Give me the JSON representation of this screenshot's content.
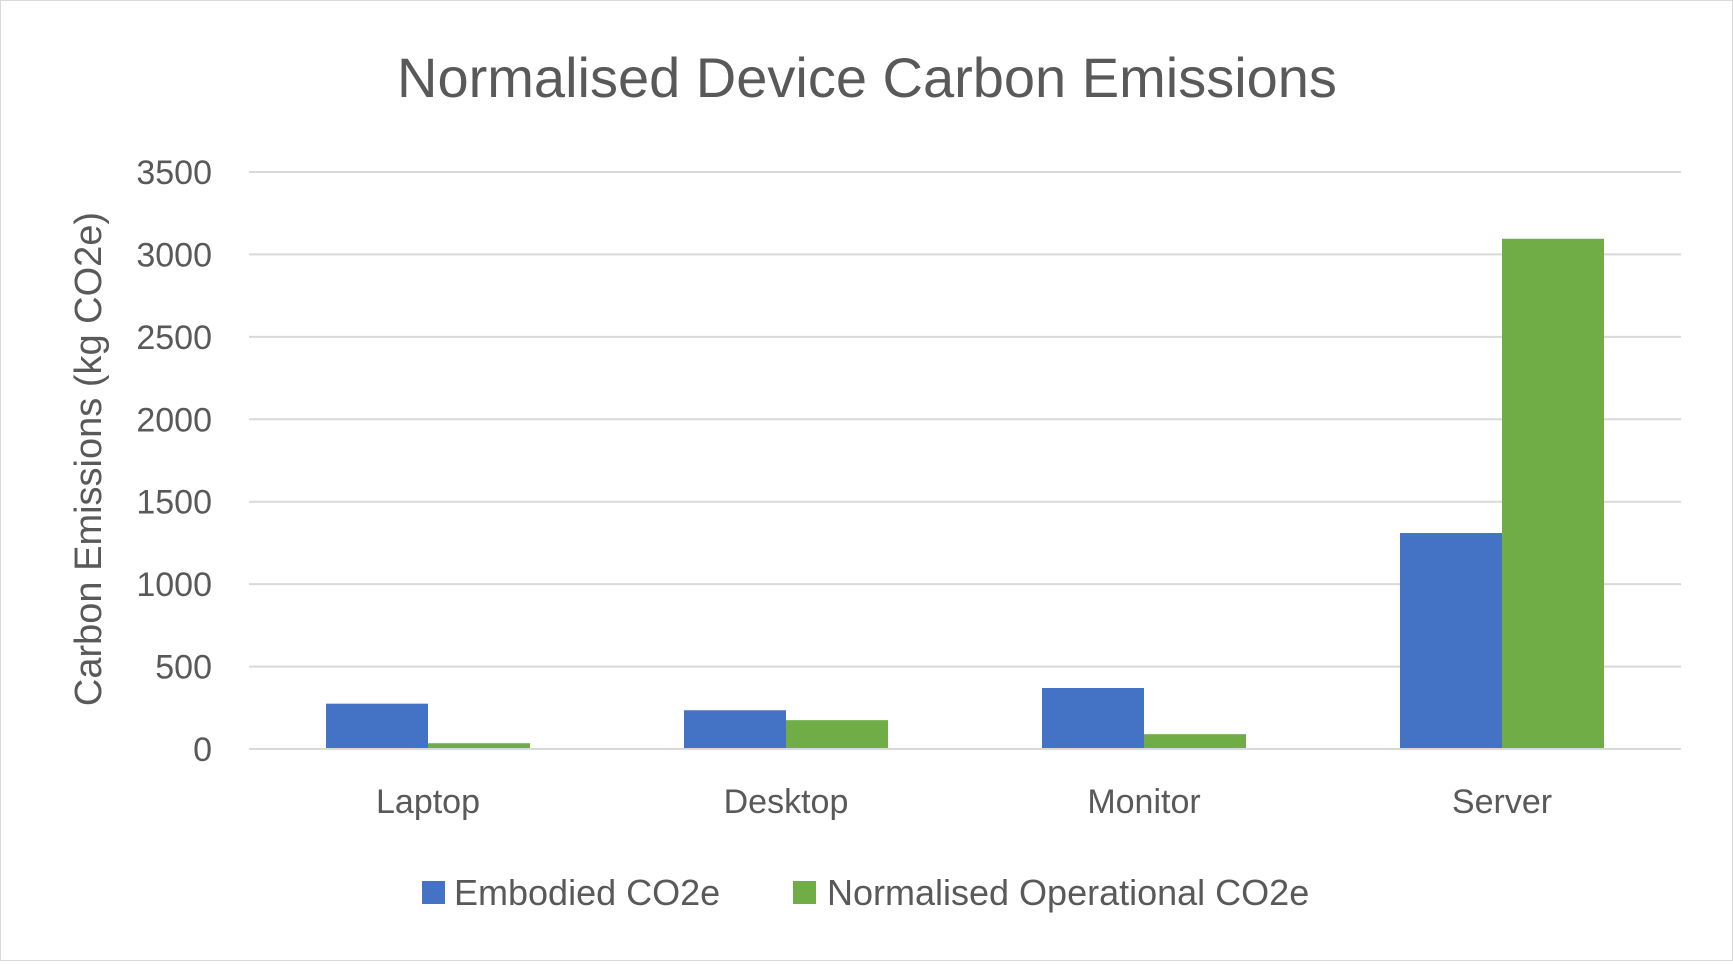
{
  "chart_data": {
    "type": "bar",
    "title": "Normalised Device Carbon Emissions",
    "xlabel": "",
    "ylabel": "Carbon Emissions (kg CO2e)",
    "ylim": [
      0,
      3500
    ],
    "yticks": [
      0,
      500,
      1000,
      1500,
      2000,
      2500,
      3000,
      3500
    ],
    "grid": true,
    "legend_position": "bottom",
    "categories": [
      "Laptop",
      "Desktop",
      "Monitor",
      "Server"
    ],
    "series": [
      {
        "name": "Embodied CO2e",
        "color": "#4472c4",
        "values": [
          275,
          235,
          370,
          1310
        ]
      },
      {
        "name": "Normalised Operational CO2e",
        "color": "#70ad47",
        "values": [
          35,
          175,
          90,
          3095
        ]
      }
    ]
  }
}
